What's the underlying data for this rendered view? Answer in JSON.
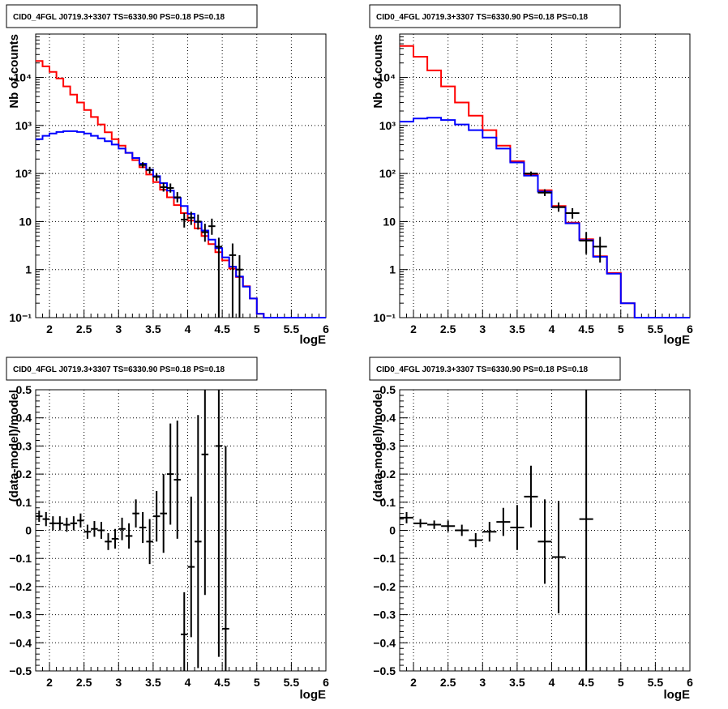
{
  "chart_data": [
    {
      "type": "step-histogram",
      "title": "CID0_4FGL J0719.3+3307 TS=6330.90 PS=0.18 PS=0.18",
      "xlabel": "logE",
      "ylabel": "Nb of counts",
      "yscale": "log",
      "xlim": [
        1.8,
        6.0
      ],
      "ylim": [
        0.1,
        80000
      ],
      "xticks": [
        "2",
        "2.5",
        "3",
        "3.5",
        "4",
        "4.5",
        "5",
        "5.5",
        "6"
      ],
      "yticks": [
        "10⁻¹",
        "1",
        "10",
        "10²",
        "10³",
        "10⁴"
      ],
      "grid": true,
      "series": [
        {
          "color": "#ff0000",
          "bin_edges": [
            1.8,
            1.9,
            2.0,
            2.1,
            2.2,
            2.3,
            2.4,
            2.5,
            2.6,
            2.7,
            2.8,
            2.9,
            3.0,
            3.1,
            3.2,
            3.3,
            3.4,
            3.5,
            3.6,
            3.7,
            3.8,
            3.9,
            4.0,
            4.1,
            4.2,
            4.3,
            4.4,
            4.5,
            4.6,
            4.7,
            4.8,
            4.9,
            5.0,
            5.1,
            5.2,
            5.3,
            5.4,
            5.5,
            5.6,
            5.7,
            5.8,
            5.9,
            6.0
          ],
          "values": [
            22000,
            17000,
            13000,
            9500,
            6500,
            4400,
            3000,
            2100,
            1500,
            1050,
            720,
            520,
            380,
            270,
            190,
            135,
            95,
            66,
            46,
            32,
            22,
            15,
            10.5,
            7.2,
            5.0,
            3.4,
            2.3,
            1.55,
            1.05,
            0.7,
            0.45,
            0.25,
            0.12,
            0.1,
            0.1,
            0.1,
            0.1,
            0.1,
            0.1,
            0.1,
            0.1,
            0.1
          ]
        },
        {
          "color": "#0000ff",
          "bin_edges": [
            1.8,
            1.9,
            2.0,
            2.1,
            2.2,
            2.3,
            2.4,
            2.5,
            2.6,
            2.7,
            2.8,
            2.9,
            3.0,
            3.1,
            3.2,
            3.3,
            3.4,
            3.5,
            3.6,
            3.7,
            3.8,
            3.9,
            4.0,
            4.1,
            4.2,
            4.3,
            4.4,
            4.5,
            4.6,
            4.7,
            4.8,
            4.9,
            5.0,
            5.1,
            5.2,
            5.3,
            5.4,
            5.5,
            5.6,
            5.7,
            5.8,
            5.9,
            6.0
          ],
          "values": [
            520,
            610,
            680,
            730,
            760,
            760,
            730,
            680,
            610,
            540,
            470,
            400,
            330,
            270,
            210,
            160,
            120,
            88,
            63,
            44,
            31,
            21,
            14.5,
            9.8,
            6.5,
            4.2,
            2.8,
            1.8,
            1.15,
            0.72,
            0.44,
            0.25,
            0.12,
            0.1,
            0.1,
            0.1,
            0.1,
            0.1,
            0.1,
            0.1,
            0.1,
            0.1
          ]
        }
      ],
      "data_points": [
        {
          "x": 3.35,
          "y": 150,
          "xerr": 0.05,
          "ylo": 130,
          "yhi": 172
        },
        {
          "x": 3.45,
          "y": 118,
          "xerr": 0.05,
          "ylo": 100,
          "yhi": 138
        },
        {
          "x": 3.55,
          "y": 85,
          "xerr": 0.05,
          "ylo": 70,
          "yhi": 102
        },
        {
          "x": 3.65,
          "y": 52,
          "xerr": 0.05,
          "ylo": 42,
          "yhi": 64
        },
        {
          "x": 3.75,
          "y": 50,
          "xerr": 0.05,
          "ylo": 40,
          "yhi": 62
        },
        {
          "x": 3.85,
          "y": 32,
          "xerr": 0.05,
          "ylo": 25,
          "yhi": 41
        },
        {
          "x": 3.95,
          "y": 11,
          "xerr": 0.05,
          "ylo": 7.5,
          "yhi": 15
        },
        {
          "x": 4.05,
          "y": 12,
          "xerr": 0.05,
          "ylo": 8.5,
          "yhi": 16
        },
        {
          "x": 4.15,
          "y": 10,
          "xerr": 0.05,
          "ylo": 6.8,
          "yhi": 14
        },
        {
          "x": 4.25,
          "y": 6,
          "xerr": 0.05,
          "ylo": 3.8,
          "yhi": 9
        },
        {
          "x": 4.35,
          "y": 8,
          "xerr": 0.05,
          "ylo": 5.3,
          "yhi": 11.5
        },
        {
          "x": 4.45,
          "y": 3,
          "xerr": 0.05,
          "ylo": 0.1,
          "yhi": 4.6
        },
        {
          "x": 4.65,
          "y": 2,
          "xerr": 0.05,
          "ylo": 0.1,
          "yhi": 3.5
        },
        {
          "x": 4.75,
          "y": 1,
          "xerr": 0.05,
          "ylo": 0.1,
          "yhi": 2
        }
      ]
    },
    {
      "type": "step-histogram",
      "title": "CID0_4FGL J0719.3+3307 TS=6330.90 PS=0.18 PS=0.18",
      "xlabel": "logE",
      "ylabel": "Nb of counts",
      "yscale": "log",
      "xlim": [
        1.8,
        6.0
      ],
      "ylim": [
        0.1,
        80000
      ],
      "xticks": [
        "2",
        "2.5",
        "3",
        "3.5",
        "4",
        "4.5",
        "5",
        "5.5",
        "6"
      ],
      "yticks": [
        "10⁻¹",
        "1",
        "10",
        "10²",
        "10³",
        "10⁴"
      ],
      "grid": true,
      "series": [
        {
          "color": "#ff0000",
          "bin_edges": [
            1.8,
            2.0,
            2.2,
            2.4,
            2.6,
            2.8,
            3.0,
            3.2,
            3.4,
            3.6,
            3.8,
            4.0,
            4.2,
            4.4,
            4.6,
            4.8,
            5.0,
            5.2,
            5.4,
            5.6,
            5.8,
            6.0
          ],
          "values": [
            45000,
            27000,
            14000,
            6500,
            3000,
            1600,
            800,
            380,
            180,
            95,
            45,
            21,
            9.5,
            4.3,
            1.9,
            0.85,
            0.2,
            0.1,
            0.1,
            0.1,
            0.1
          ]
        },
        {
          "color": "#0000ff",
          "bin_edges": [
            1.8,
            2.0,
            2.2,
            2.4,
            2.6,
            2.8,
            3.0,
            3.2,
            3.4,
            3.6,
            3.8,
            4.0,
            4.2,
            4.4,
            4.6,
            4.8,
            5.0,
            5.2,
            5.4,
            5.6,
            5.8,
            6.0
          ],
          "values": [
            1200,
            1400,
            1450,
            1300,
            1050,
            800,
            560,
            330,
            170,
            90,
            42,
            20,
            9.2,
            4.1,
            1.85,
            0.82,
            0.2,
            0.1,
            0.1,
            0.1,
            0.1
          ]
        }
      ],
      "data_points": [
        {
          "x": 3.7,
          "y": 100,
          "xerr": 0.1,
          "ylo": 90,
          "yhi": 110
        },
        {
          "x": 3.9,
          "y": 40,
          "xerr": 0.1,
          "ylo": 34,
          "yhi": 47
        },
        {
          "x": 4.1,
          "y": 20,
          "xerr": 0.1,
          "ylo": 16,
          "yhi": 25
        },
        {
          "x": 4.3,
          "y": 15,
          "xerr": 0.1,
          "ylo": 11.5,
          "yhi": 19
        },
        {
          "x": 4.5,
          "y": 4,
          "xerr": 0.1,
          "ylo": 2.1,
          "yhi": 6
        },
        {
          "x": 4.7,
          "y": 3,
          "xerr": 0.1,
          "ylo": 1.4,
          "yhi": 4.8
        }
      ]
    },
    {
      "type": "scatter-errorbar",
      "title": "CID0_4FGL J0719.3+3307 TS=6330.90 PS=0.18 PS=0.18",
      "xlabel": "logE",
      "ylabel": "(data-model)/model",
      "xlim": [
        1.8,
        6.0
      ],
      "ylim": [
        -0.5,
        0.5
      ],
      "xticks": [
        "2",
        "2.5",
        "3",
        "3.5",
        "4",
        "4.5",
        "5",
        "5.5",
        "6"
      ],
      "yticks": [
        "−0.5",
        "−0.4",
        "−0.3",
        "−0.2",
        "−0.1",
        "0",
        "0.1",
        "0.2",
        "0.3",
        "0.4",
        "0.5"
      ],
      "grid": true,
      "points": [
        {
          "x": 1.85,
          "y": 0.05,
          "xerr": 0.05,
          "yerr": 0.02
        },
        {
          "x": 1.95,
          "y": 0.04,
          "xerr": 0.05,
          "yerr": 0.025
        },
        {
          "x": 2.05,
          "y": 0.025,
          "xerr": 0.05,
          "yerr": 0.025
        },
        {
          "x": 2.15,
          "y": 0.025,
          "xerr": 0.05,
          "yerr": 0.025
        },
        {
          "x": 2.25,
          "y": 0.02,
          "xerr": 0.05,
          "yerr": 0.025
        },
        {
          "x": 2.35,
          "y": 0.025,
          "xerr": 0.05,
          "yerr": 0.025
        },
        {
          "x": 2.45,
          "y": 0.035,
          "xerr": 0.05,
          "yerr": 0.025
        },
        {
          "x": 2.55,
          "y": -0.005,
          "xerr": 0.05,
          "yerr": 0.025
        },
        {
          "x": 2.65,
          "y": 0.005,
          "xerr": 0.05,
          "yerr": 0.028
        },
        {
          "x": 2.75,
          "y": 0.0,
          "xerr": 0.05,
          "yerr": 0.03
        },
        {
          "x": 2.85,
          "y": -0.04,
          "xerr": 0.05,
          "yerr": 0.03
        },
        {
          "x": 2.95,
          "y": -0.03,
          "xerr": 0.05,
          "yerr": 0.035
        },
        {
          "x": 3.05,
          "y": 0.005,
          "xerr": 0.05,
          "yerr": 0.04
        },
        {
          "x": 3.15,
          "y": -0.02,
          "xerr": 0.05,
          "yerr": 0.045
        },
        {
          "x": 3.25,
          "y": 0.06,
          "xerr": 0.05,
          "yerr": 0.05
        },
        {
          "x": 3.35,
          "y": 0.01,
          "xerr": 0.05,
          "yerr": 0.055
        },
        {
          "x": 3.45,
          "y": -0.04,
          "xerr": 0.05,
          "yerr": 0.08
        },
        {
          "x": 3.55,
          "y": 0.05,
          "xerr": 0.05,
          "yerr": 0.09
        },
        {
          "x": 3.65,
          "y": 0.06,
          "xerr": 0.05,
          "yerr": 0.14
        },
        {
          "x": 3.75,
          "y": 0.2,
          "xerr": 0.05,
          "yerr": 0.18
        },
        {
          "x": 3.85,
          "y": 0.18,
          "xerr": 0.05,
          "yerr": 0.21
        },
        {
          "x": 3.95,
          "y": -0.37,
          "xerr": 0.05,
          "yerr": 0.15
        },
        {
          "x": 4.05,
          "y": -0.13,
          "xerr": 0.05,
          "yerr": 0.25
        },
        {
          "x": 4.15,
          "y": -0.04,
          "xerr": 0.05,
          "yerr": 0.45
        },
        {
          "x": 4.25,
          "y": 0.27,
          "xerr": 0.05,
          "yerr": 0.5
        },
        {
          "x": 4.45,
          "y": 0.3,
          "xerr": 0.05,
          "yerr": 0.75
        },
        {
          "x": 4.55,
          "y": -0.35,
          "xerr": 0.05,
          "yerr": 0.65
        }
      ]
    },
    {
      "type": "scatter-errorbar",
      "title": "CID0_4FGL J0719.3+3307 TS=6330.90 PS=0.18 PS=0.18",
      "xlabel": "logE",
      "ylabel": "(data-model)/model",
      "xlim": [
        1.8,
        6.0
      ],
      "ylim": [
        -0.5,
        0.5
      ],
      "xticks": [
        "2",
        "2.5",
        "3",
        "3.5",
        "4",
        "4.5",
        "5",
        "5.5",
        "6"
      ],
      "yticks": [
        "−0.5",
        "−0.4",
        "−0.3",
        "−0.2",
        "−0.1",
        "0",
        "0.1",
        "0.2",
        "0.3",
        "0.4",
        "0.5"
      ],
      "grid": true,
      "points": [
        {
          "x": 1.9,
          "y": 0.045,
          "xerr": 0.1,
          "yerr": 0.02
        },
        {
          "x": 2.1,
          "y": 0.025,
          "xerr": 0.1,
          "yerr": 0.015
        },
        {
          "x": 2.3,
          "y": 0.02,
          "xerr": 0.1,
          "yerr": 0.015
        },
        {
          "x": 2.5,
          "y": 0.015,
          "xerr": 0.1,
          "yerr": 0.02
        },
        {
          "x": 2.7,
          "y": 0.0,
          "xerr": 0.1,
          "yerr": 0.02
        },
        {
          "x": 2.9,
          "y": -0.035,
          "xerr": 0.1,
          "yerr": 0.025
        },
        {
          "x": 3.1,
          "y": -0.005,
          "xerr": 0.1,
          "yerr": 0.035
        },
        {
          "x": 3.3,
          "y": 0.03,
          "xerr": 0.1,
          "yerr": 0.05
        },
        {
          "x": 3.5,
          "y": 0.01,
          "xerr": 0.1,
          "yerr": 0.08
        },
        {
          "x": 3.7,
          "y": 0.12,
          "xerr": 0.1,
          "yerr": 0.11
        },
        {
          "x": 3.9,
          "y": -0.04,
          "xerr": 0.1,
          "yerr": 0.15
        },
        {
          "x": 4.1,
          "y": -0.095,
          "xerr": 0.1,
          "yerr": 0.2
        },
        {
          "x": 4.5,
          "y": 0.04,
          "xerr": 0.1,
          "yerr": 0.68
        }
      ]
    }
  ]
}
